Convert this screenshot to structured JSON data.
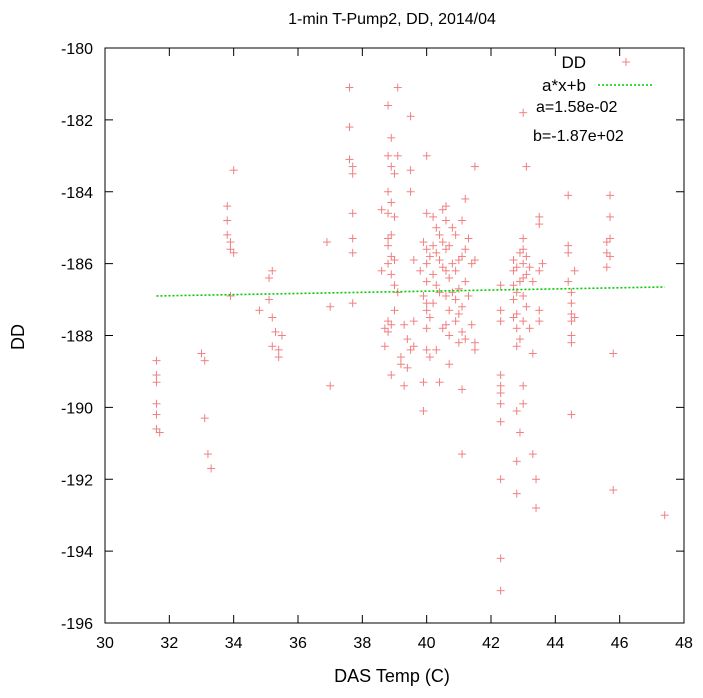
{
  "chart_data": {
    "type": "scatter",
    "title": "1-min T-Pump2, DD, 2014/04",
    "xlabel": "DAS Temp (C)",
    "ylabel": "DD",
    "xlim": [
      30,
      48
    ],
    "ylim": [
      -196,
      -180
    ],
    "x_ticks": [
      30,
      32,
      34,
      36,
      38,
      40,
      42,
      44,
      46,
      48
    ],
    "y_ticks": [
      -180,
      -182,
      -184,
      -186,
      -188,
      -190,
      -192,
      -194,
      -196
    ],
    "grid": false,
    "legend_position": "top-right",
    "series": [
      {
        "name": "DD",
        "marker": "plus",
        "color": "#f08080",
        "points": [
          [
            31.6,
            -188.7
          ],
          [
            31.6,
            -189.1
          ],
          [
            31.6,
            -189.3
          ],
          [
            31.6,
            -189.9
          ],
          [
            31.6,
            -190.2
          ],
          [
            31.6,
            -190.6
          ],
          [
            31.7,
            -190.7
          ],
          [
            33.0,
            -188.5
          ],
          [
            33.1,
            -188.7
          ],
          [
            33.1,
            -190.3
          ],
          [
            33.2,
            -191.3
          ],
          [
            33.3,
            -191.7
          ],
          [
            33.8,
            -184.4
          ],
          [
            33.8,
            -184.8
          ],
          [
            33.8,
            -185.2
          ],
          [
            33.9,
            -185.4
          ],
          [
            33.9,
            -185.6
          ],
          [
            33.9,
            -186.9
          ],
          [
            34.0,
            -183.4
          ],
          [
            34.0,
            -185.7
          ],
          [
            34.8,
            -187.3
          ],
          [
            35.1,
            -186.4
          ],
          [
            35.1,
            -187.0
          ],
          [
            35.2,
            -186.2
          ],
          [
            35.2,
            -187.5
          ],
          [
            35.2,
            -188.3
          ],
          [
            35.3,
            -187.9
          ],
          [
            35.4,
            -188.4
          ],
          [
            35.4,
            -188.6
          ],
          [
            35.5,
            -188.0
          ],
          [
            36.9,
            -185.4
          ],
          [
            37.0,
            -187.2
          ],
          [
            37.0,
            -189.4
          ],
          [
            37.6,
            -181.1
          ],
          [
            37.6,
            -182.2
          ],
          [
            37.6,
            -183.1
          ],
          [
            37.7,
            -183.3
          ],
          [
            37.7,
            -183.5
          ],
          [
            37.7,
            -184.6
          ],
          [
            37.7,
            -185.3
          ],
          [
            37.7,
            -185.7
          ],
          [
            37.7,
            -187.1
          ],
          [
            38.6,
            -184.5
          ],
          [
            38.6,
            -186.2
          ],
          [
            38.7,
            -187.8
          ],
          [
            38.7,
            -188.3
          ],
          [
            38.8,
            -181.6
          ],
          [
            38.8,
            -183.0
          ],
          [
            38.8,
            -184.0
          ],
          [
            38.8,
            -184.6
          ],
          [
            38.8,
            -185.3
          ],
          [
            38.8,
            -185.5
          ],
          [
            38.8,
            -186.0
          ],
          [
            38.8,
            -187.6
          ],
          [
            38.8,
            -187.9
          ],
          [
            38.9,
            -182.5
          ],
          [
            38.9,
            -183.3
          ],
          [
            38.9,
            -184.3
          ],
          [
            38.9,
            -185.2
          ],
          [
            38.9,
            -185.8
          ],
          [
            38.9,
            -186.3
          ],
          [
            38.9,
            -187.7
          ],
          [
            38.9,
            -189.1
          ],
          [
            39.0,
            -183.5
          ],
          [
            39.0,
            -184.7
          ],
          [
            39.0,
            -185.9
          ],
          [
            39.0,
            -186.6
          ],
          [
            39.0,
            -187.3
          ],
          [
            39.1,
            -181.1
          ],
          [
            39.1,
            -183.0
          ],
          [
            39.1,
            -186.8
          ],
          [
            39.2,
            -188.6
          ],
          [
            39.2,
            -188.8
          ],
          [
            39.3,
            -187.7
          ],
          [
            39.3,
            -189.4
          ],
          [
            39.4,
            -188.1
          ],
          [
            39.4,
            -188.9
          ],
          [
            39.5,
            -181.9
          ],
          [
            39.5,
            -183.4
          ],
          [
            39.5,
            -184.0
          ],
          [
            39.5,
            -188.4
          ],
          [
            39.6,
            -185.9
          ],
          [
            39.6,
            -188.3
          ],
          [
            39.6,
            -187.6
          ],
          [
            39.8,
            -186.2
          ],
          [
            39.9,
            -185.4
          ],
          [
            39.9,
            -186.9
          ],
          [
            39.9,
            -189.3
          ],
          [
            39.9,
            -190.1
          ],
          [
            40.0,
            -183.0
          ],
          [
            40.0,
            -184.6
          ],
          [
            40.0,
            -185.6
          ],
          [
            40.0,
            -186.0
          ],
          [
            40.0,
            -186.5
          ],
          [
            40.0,
            -187.1
          ],
          [
            40.0,
            -187.3
          ],
          [
            40.0,
            -187.8
          ],
          [
            40.0,
            -188.4
          ],
          [
            40.1,
            -185.8
          ],
          [
            40.1,
            -187.5
          ],
          [
            40.1,
            -188.6
          ],
          [
            40.2,
            -184.7
          ],
          [
            40.2,
            -185.5
          ],
          [
            40.2,
            -186.3
          ],
          [
            40.2,
            -187.1
          ],
          [
            40.3,
            -185.0
          ],
          [
            40.3,
            -185.7
          ],
          [
            40.3,
            -186.6
          ],
          [
            40.3,
            -188.4
          ],
          [
            40.4,
            -185.2
          ],
          [
            40.4,
            -185.9
          ],
          [
            40.4,
            -186.8
          ],
          [
            40.4,
            -189.3
          ],
          [
            40.5,
            -184.5
          ],
          [
            40.5,
            -185.4
          ],
          [
            40.5,
            -186.1
          ],
          [
            40.5,
            -187.8
          ],
          [
            40.6,
            -184.4
          ],
          [
            40.6,
            -184.8
          ],
          [
            40.6,
            -185.6
          ],
          [
            40.6,
            -186.2
          ],
          [
            40.6,
            -186.9
          ],
          [
            40.6,
            -187.7
          ],
          [
            40.7,
            -185.5
          ],
          [
            40.7,
            -186.4
          ],
          [
            40.7,
            -187.3
          ],
          [
            40.7,
            -188.0
          ],
          [
            40.7,
            -188.8
          ],
          [
            40.8,
            -185.0
          ],
          [
            40.8,
            -186.0
          ],
          [
            40.8,
            -186.8
          ],
          [
            40.9,
            -185.2
          ],
          [
            40.9,
            -186.2
          ],
          [
            40.9,
            -187.0
          ],
          [
            40.9,
            -187.6
          ],
          [
            41.0,
            -185.9
          ],
          [
            41.0,
            -186.7
          ],
          [
            41.0,
            -187.4
          ],
          [
            41.0,
            -188.2
          ],
          [
            41.1,
            -184.8
          ],
          [
            41.1,
            -185.8
          ],
          [
            41.1,
            -187.2
          ],
          [
            41.1,
            -187.9
          ],
          [
            41.1,
            -189.5
          ],
          [
            41.1,
            -191.3
          ],
          [
            41.2,
            -184.2
          ],
          [
            41.2,
            -185.6
          ],
          [
            41.2,
            -186.5
          ],
          [
            41.2,
            -188.1
          ],
          [
            41.3,
            -185.3
          ],
          [
            41.3,
            -186.9
          ],
          [
            41.4,
            -186.0
          ],
          [
            41.4,
            -187.7
          ],
          [
            41.5,
            -183.3
          ],
          [
            41.5,
            -185.9
          ],
          [
            41.5,
            -188.2
          ],
          [
            41.5,
            -188.4
          ],
          [
            42.3,
            -186.6
          ],
          [
            42.3,
            -187.3
          ],
          [
            42.3,
            -187.6
          ],
          [
            42.3,
            -189.1
          ],
          [
            42.3,
            -189.4
          ],
          [
            42.3,
            -189.6
          ],
          [
            42.3,
            -189.9
          ],
          [
            42.3,
            -190.4
          ],
          [
            42.3,
            -192.0
          ],
          [
            42.3,
            -194.2
          ],
          [
            42.3,
            -195.1
          ],
          [
            42.7,
            -185.9
          ],
          [
            42.7,
            -186.2
          ],
          [
            42.7,
            -186.6
          ],
          [
            42.7,
            -187.0
          ],
          [
            42.7,
            -187.5
          ],
          [
            42.8,
            -186.1
          ],
          [
            42.8,
            -186.8
          ],
          [
            42.8,
            -187.4
          ],
          [
            42.8,
            -187.8
          ],
          [
            42.8,
            -188.3
          ],
          [
            42.8,
            -190.1
          ],
          [
            42.8,
            -191.5
          ],
          [
            42.8,
            -192.4
          ],
          [
            42.9,
            -185.7
          ],
          [
            42.9,
            -186.5
          ],
          [
            42.9,
            -188.1
          ],
          [
            42.9,
            -190.7
          ],
          [
            43.0,
            -181.8
          ],
          [
            43.0,
            -185.3
          ],
          [
            43.0,
            -185.6
          ],
          [
            43.0,
            -186.0
          ],
          [
            43.0,
            -186.4
          ],
          [
            43.0,
            -186.9
          ],
          [
            43.0,
            -187.6
          ],
          [
            43.0,
            -189.4
          ],
          [
            43.0,
            -189.9
          ],
          [
            43.1,
            -183.3
          ],
          [
            43.1,
            -185.8
          ],
          [
            43.1,
            -186.3
          ],
          [
            43.1,
            -187.2
          ],
          [
            43.2,
            -186.1
          ],
          [
            43.2,
            -187.8
          ],
          [
            43.3,
            -186.5
          ],
          [
            43.3,
            -188.5
          ],
          [
            43.3,
            -191.3
          ],
          [
            43.4,
            -192.0
          ],
          [
            43.4,
            -192.8
          ],
          [
            43.5,
            -184.7
          ],
          [
            43.5,
            -184.9
          ],
          [
            43.5,
            -186.2
          ],
          [
            43.5,
            -187.3
          ],
          [
            43.5,
            -187.6
          ],
          [
            43.6,
            -186.0
          ],
          [
            44.4,
            -184.1
          ],
          [
            44.4,
            -185.5
          ],
          [
            44.4,
            -185.7
          ],
          [
            44.4,
            -186.5
          ],
          [
            44.5,
            -186.8
          ],
          [
            44.5,
            -187.1
          ],
          [
            44.5,
            -187.4
          ],
          [
            44.5,
            -187.6
          ],
          [
            44.5,
            -188.0
          ],
          [
            44.5,
            -188.2
          ],
          [
            44.5,
            -190.2
          ],
          [
            44.6,
            -186.2
          ],
          [
            44.6,
            -187.5
          ],
          [
            45.6,
            -185.4
          ],
          [
            45.6,
            -185.7
          ],
          [
            45.6,
            -186.1
          ],
          [
            45.7,
            -184.1
          ],
          [
            45.7,
            -184.7
          ],
          [
            45.7,
            -185.3
          ],
          [
            45.7,
            -185.8
          ],
          [
            45.8,
            -188.5
          ],
          [
            45.8,
            -192.3
          ],
          [
            47.4,
            -193.0
          ]
        ]
      },
      {
        "name": "a*x+b",
        "type": "line",
        "color": "#00cc00",
        "dash": "dotted",
        "fit": {
          "a": 0.0158,
          "b": -187.0
        },
        "x": [
          31.6,
          47.4
        ],
        "y": [
          -186.9,
          -186.65
        ]
      }
    ],
    "annotations": [
      "a=1.58e-02",
      "b=-1.87e+02"
    ]
  }
}
